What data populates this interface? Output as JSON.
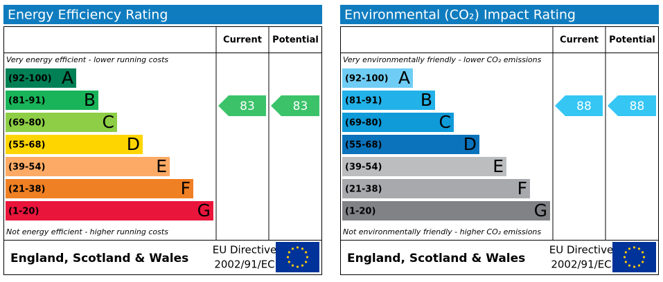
{
  "panels": [
    {
      "title": "Energy Efficiency Rating",
      "headers": [
        "Current",
        "Potential"
      ],
      "top_note": "Very energy efficient - lower running costs",
      "bottom_note": "Not energy efficient - higher running costs",
      "bands": [
        {
          "range": "(92-100)",
          "letter": "A",
          "color": "#008054"
        },
        {
          "range": "(81-91)",
          "letter": "B",
          "color": "#19b459"
        },
        {
          "range": "(69-80)",
          "letter": "C",
          "color": "#8dce46"
        },
        {
          "range": "(55-68)",
          "letter": "D",
          "color": "#ffd500"
        },
        {
          "range": "(39-54)",
          "letter": "E",
          "color": "#fcaa65"
        },
        {
          "range": "(21-38)",
          "letter": "F",
          "color": "#ef8023"
        },
        {
          "range": "(1-20)",
          "letter": "G",
          "color": "#e9153b"
        }
      ],
      "current": 83,
      "potential": 83,
      "arrow_color": "#3cc36a",
      "region": "England, Scotland & Wales",
      "directive": [
        "EU Directive",
        "2002/91/EC"
      ]
    },
    {
      "title": "Environmental (CO₂) Impact Rating",
      "headers": [
        "Current",
        "Potential"
      ],
      "top_note": "Very environmentally friendly - lower CO₂ emissions",
      "bottom_note": "Not environmentally friendly - higher CO₂ emissions",
      "bands": [
        {
          "range": "(92-100)",
          "letter": "A",
          "color": "#6fcdf5"
        },
        {
          "range": "(81-91)",
          "letter": "B",
          "color": "#22b1e8"
        },
        {
          "range": "(69-80)",
          "letter": "C",
          "color": "#0f9ad8"
        },
        {
          "range": "(55-68)",
          "letter": "D",
          "color": "#0b73bb"
        },
        {
          "range": "(39-54)",
          "letter": "E",
          "color": "#bbbdbf"
        },
        {
          "range": "(21-38)",
          "letter": "F",
          "color": "#a7a9ac"
        },
        {
          "range": "(1-20)",
          "letter": "G",
          "color": "#808285"
        }
      ],
      "current": 88,
      "potential": 88,
      "arrow_color": "#35c6f4",
      "region": "England, Scotland & Wales",
      "directive": [
        "EU Directive",
        "2002/91/EC"
      ]
    }
  ]
}
